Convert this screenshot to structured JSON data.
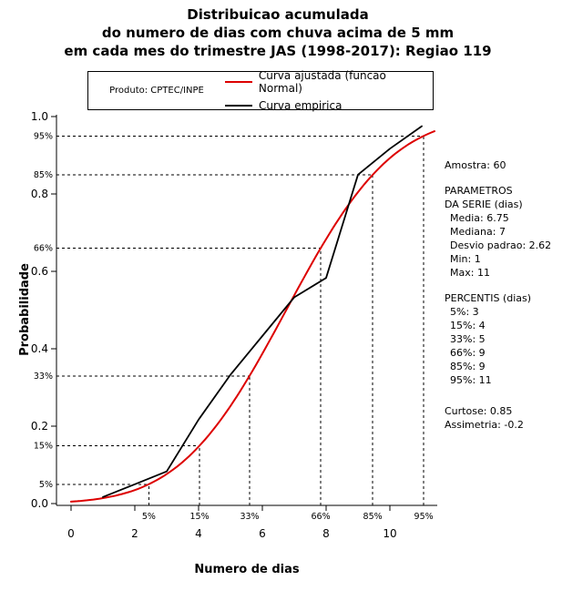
{
  "chart_data": {
    "type": "line",
    "title_lines": [
      "Distribuicao acumulada",
      "do numero de dias com chuva acima de 5 mm",
      "em cada mes do trimestre JAS (1998-2017): Regiao 119"
    ],
    "xlabel": "Numero de dias",
    "ylabel": "Probabilidade",
    "xlim": [
      0,
      11.5
    ],
    "ylim": [
      0,
      1
    ],
    "grid": false,
    "legend_position": "top-inside-box",
    "x_ticks": [
      0,
      2,
      4,
      6,
      8,
      10
    ],
    "y_ticks": [
      "0.0",
      "0.2",
      "0.4",
      "0.6",
      "0.8",
      "1.0"
    ],
    "series": [
      {
        "name": "Curva ajustada (funcao Normal)",
        "color": "#dd0000",
        "curve": "normal_cdf",
        "mean": 6.75,
        "sd": 2.62
      },
      {
        "name": "Curva empirica",
        "color": "#000000",
        "curve": "points",
        "x": [
          1,
          2,
          3,
          4,
          5,
          6,
          7,
          8,
          9,
          10,
          11
        ],
        "y": [
          0.017,
          0.05,
          0.083,
          0.217,
          0.333,
          0.433,
          0.533,
          0.583,
          0.85,
          0.917,
          0.975
        ]
      }
    ],
    "percentile_guides": [
      {
        "label": "5%",
        "p": 0.05,
        "x": 2.44
      },
      {
        "label": "15%",
        "p": 0.15,
        "x": 4.03
      },
      {
        "label": "33%",
        "p": 0.33,
        "x": 5.6
      },
      {
        "label": "66%",
        "p": 0.66,
        "x": 7.83
      },
      {
        "label": "85%",
        "p": 0.85,
        "x": 9.46
      },
      {
        "label": "95%",
        "p": 0.95,
        "x": 11.06
      }
    ]
  },
  "legend": {
    "product": "Produto: CPTEC/INPE"
  },
  "stats": {
    "amostra": "Amostra: 60",
    "param_header1": "PARAMETROS",
    "param_header2": "DA SERIE (dias)",
    "media": "Media: 6.75",
    "mediana": "Mediana: 7",
    "desvio": "Desvio padrao: 2.62",
    "min": "Min: 1",
    "max": "Max: 11",
    "percentis_header": "PERCENTIS (dias)",
    "p5": "5%: 3",
    "p15": "15%: 4",
    "p33": "33%: 5",
    "p66": "66%: 9",
    "p85": "85%: 9",
    "p95": "95%: 11",
    "curtose": "Curtose: 0.85",
    "assimetria": "Assimetria: -0.2"
  }
}
